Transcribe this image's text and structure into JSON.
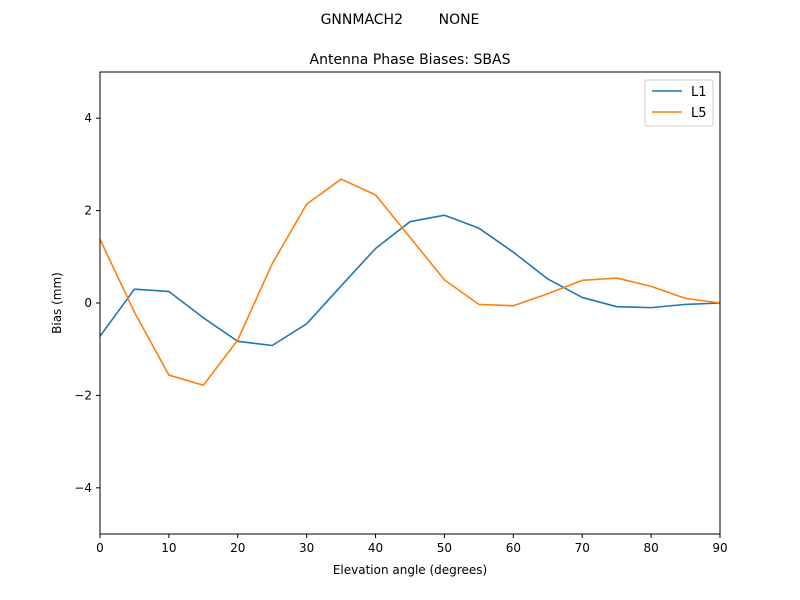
{
  "chart_data": {
    "type": "line",
    "suptitle": "GNNMACH2        NONE",
    "title": "Antenna Phase Biases: SBAS",
    "xlabel": "Elevation angle (degrees)",
    "ylabel": "Bias (mm)",
    "xlim": [
      0,
      90
    ],
    "ylim": [
      -5,
      5
    ],
    "xticks": [
      0,
      10,
      20,
      30,
      40,
      50,
      60,
      70,
      80,
      90
    ],
    "yticks": [
      -4,
      -2,
      0,
      2,
      4
    ],
    "grid": false,
    "legend_position": "top-right",
    "x": [
      0,
      5,
      10,
      15,
      20,
      25,
      30,
      35,
      40,
      45,
      50,
      55,
      60,
      65,
      70,
      75,
      80,
      85,
      90
    ],
    "series": [
      {
        "name": "L1",
        "color": "#1f77b4",
        "values": [
          -0.72,
          0.3,
          0.25,
          -0.32,
          -0.83,
          -0.92,
          -0.45,
          0.37,
          1.18,
          1.76,
          1.9,
          1.62,
          1.1,
          0.52,
          0.12,
          -0.08,
          -0.1,
          -0.03,
          0.0
        ]
      },
      {
        "name": "L5",
        "color": "#ff7f0e",
        "values": [
          1.38,
          -0.2,
          -1.56,
          -1.78,
          -0.8,
          0.85,
          2.14,
          2.68,
          2.34,
          1.42,
          0.5,
          -0.03,
          -0.06,
          0.2,
          0.49,
          0.54,
          0.36,
          0.1,
          0.0
        ]
      }
    ]
  }
}
